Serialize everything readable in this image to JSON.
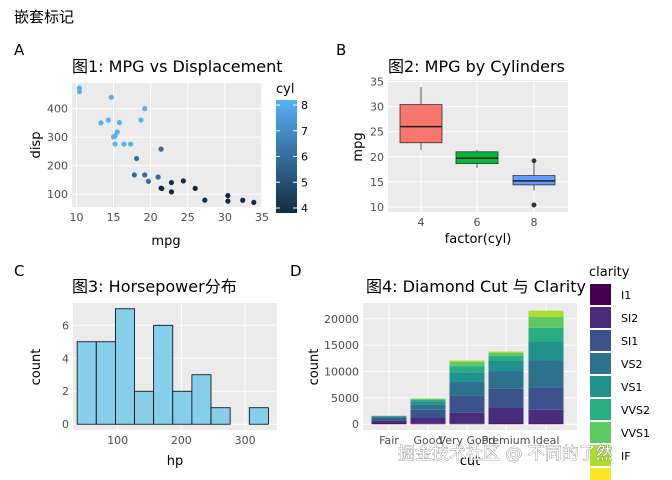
{
  "page_title": "嵌套标记",
  "watermark": "掘金技术社区 @ 不同的了然",
  "colors": {
    "panel_bg": "#ebebeb",
    "grid_major": "#ffffff",
    "hist_fill": "#87ceeb",
    "cyl4": "#f8766d",
    "cyl6": "#00ba38",
    "cyl8": "#619cff",
    "cyl_low": "#132b43",
    "cyl_high": "#56b1f7"
  },
  "chart_data": [
    {
      "tag": "A",
      "type": "scatter",
      "title": "图1: MPG vs Displacement",
      "xlabel": "mpg",
      "ylabel": "disp",
      "xlim": [
        9.4,
        35.0
      ],
      "ylim": [
        55,
        490
      ],
      "xticks": [
        10,
        15,
        20,
        25,
        30,
        35
      ],
      "yticks": [
        100,
        200,
        300,
        400
      ],
      "color_legend": {
        "title": "cyl",
        "range": [
          4,
          8
        ],
        "ticks": [
          4,
          5,
          6,
          7,
          8
        ]
      },
      "points": [
        {
          "x": 21.0,
          "y": 160,
          "c": 6
        },
        {
          "x": 21.0,
          "y": 160,
          "c": 6
        },
        {
          "x": 22.8,
          "y": 108,
          "c": 4
        },
        {
          "x": 21.4,
          "y": 258,
          "c": 6
        },
        {
          "x": 18.7,
          "y": 360,
          "c": 8
        },
        {
          "x": 18.1,
          "y": 225,
          "c": 6
        },
        {
          "x": 14.3,
          "y": 360,
          "c": 8
        },
        {
          "x": 24.4,
          "y": 146.7,
          "c": 4
        },
        {
          "x": 22.8,
          "y": 140.8,
          "c": 4
        },
        {
          "x": 19.2,
          "y": 167.6,
          "c": 6
        },
        {
          "x": 17.8,
          "y": 167.6,
          "c": 6
        },
        {
          "x": 16.4,
          "y": 275.8,
          "c": 8
        },
        {
          "x": 17.3,
          "y": 275.8,
          "c": 8
        },
        {
          "x": 15.2,
          "y": 275.8,
          "c": 8
        },
        {
          "x": 10.4,
          "y": 472,
          "c": 8
        },
        {
          "x": 10.4,
          "y": 460,
          "c": 8
        },
        {
          "x": 14.7,
          "y": 440,
          "c": 8
        },
        {
          "x": 32.4,
          "y": 78.7,
          "c": 4
        },
        {
          "x": 30.4,
          "y": 75.7,
          "c": 4
        },
        {
          "x": 33.9,
          "y": 71.1,
          "c": 4
        },
        {
          "x": 21.5,
          "y": 120.1,
          "c": 4
        },
        {
          "x": 15.5,
          "y": 318,
          "c": 8
        },
        {
          "x": 15.2,
          "y": 304,
          "c": 8
        },
        {
          "x": 13.3,
          "y": 350,
          "c": 8
        },
        {
          "x": 19.2,
          "y": 400,
          "c": 8
        },
        {
          "x": 27.3,
          "y": 79,
          "c": 4
        },
        {
          "x": 26.0,
          "y": 120.3,
          "c": 4
        },
        {
          "x": 30.4,
          "y": 95.1,
          "c": 4
        },
        {
          "x": 15.8,
          "y": 351,
          "c": 8
        },
        {
          "x": 19.7,
          "y": 145,
          "c": 6
        },
        {
          "x": 15.0,
          "y": 301,
          "c": 8
        },
        {
          "x": 21.4,
          "y": 121,
          "c": 4
        }
      ]
    },
    {
      "tag": "B",
      "type": "box",
      "title": "图2: MPG by Cylinders",
      "xlabel": "factor(cyl)",
      "ylabel": "mpg",
      "ylim": [
        9.0,
        35.3
      ],
      "yticks": [
        10,
        15,
        20,
        25,
        30,
        35
      ],
      "categories": [
        "4",
        "6",
        "8"
      ],
      "boxes": [
        {
          "cat": "4",
          "min": 21.4,
          "q1": 22.8,
          "median": 26.0,
          "q3": 30.4,
          "max": 33.9,
          "outliers": [],
          "color": "#f8766d"
        },
        {
          "cat": "6",
          "min": 17.8,
          "q1": 18.65,
          "median": 19.7,
          "q3": 21.0,
          "max": 21.4,
          "outliers": [],
          "color": "#00ba38"
        },
        {
          "cat": "8",
          "min": 13.3,
          "q1": 14.4,
          "median": 15.2,
          "q3": 16.25,
          "max": 18.7,
          "outliers": [
            10.4,
            10.4,
            19.2
          ],
          "color": "#619cff"
        }
      ]
    },
    {
      "tag": "C",
      "type": "histogram",
      "title": "图3: Horsepower分布",
      "xlabel": "hp",
      "ylabel": "count",
      "xlim": [
        30,
        350
      ],
      "ylim": [
        -0.35,
        7.35
      ],
      "xticks": [
        100,
        200,
        300
      ],
      "yticks": [
        0,
        2,
        4,
        6
      ],
      "bins": [
        {
          "x0": 36.5,
          "x1": 66.5,
          "count": 5
        },
        {
          "x0": 66.5,
          "x1": 96.5,
          "count": 5
        },
        {
          "x0": 96.5,
          "x1": 126.5,
          "count": 7
        },
        {
          "x0": 126.5,
          "x1": 156.5,
          "count": 2
        },
        {
          "x0": 156.5,
          "x1": 186.5,
          "count": 6
        },
        {
          "x0": 186.5,
          "x1": 216.5,
          "count": 2
        },
        {
          "x0": 216.5,
          "x1": 246.5,
          "count": 3
        },
        {
          "x0": 246.5,
          "x1": 276.5,
          "count": 1
        },
        {
          "x0": 276.5,
          "x1": 306.5,
          "count": 0
        },
        {
          "x0": 306.5,
          "x1": 336.5,
          "count": 1
        }
      ]
    },
    {
      "tag": "D",
      "type": "stacked-bar",
      "title": "图4: Diamond Cut 与 Clarity",
      "xlabel": "cut",
      "ylabel": "count",
      "ylim": [
        -1100,
        23000
      ],
      "yticks": [
        0,
        5000,
        10000,
        15000,
        20000
      ],
      "categories": [
        "Fair",
        "Good",
        "Very Good",
        "Premium",
        "Ideal"
      ],
      "legend_title": "clarity",
      "series": [
        {
          "name": "I1",
          "color": "#440154",
          "values": [
            210,
            96,
            84,
            205,
            146
          ]
        },
        {
          "name": "SI2",
          "color": "#472d7b",
          "values": [
            466,
            1081,
            2100,
            2949,
            2598
          ]
        },
        {
          "name": "SI1",
          "color": "#3b528b",
          "values": [
            408,
            1560,
            3240,
            3575,
            4282
          ]
        },
        {
          "name": "VS2",
          "color": "#2c728e",
          "values": [
            261,
            978,
            2591,
            3357,
            5071
          ]
        },
        {
          "name": "VS1",
          "color": "#21918c",
          "values": [
            170,
            648,
            1775,
            1989,
            3589
          ]
        },
        {
          "name": "VVS2",
          "color": "#28ae80",
          "values": [
            69,
            286,
            1235,
            870,
            2606
          ]
        },
        {
          "name": "VVS1",
          "color": "#5ec962",
          "values": [
            17,
            186,
            789,
            616,
            2047
          ]
        },
        {
          "name": "IF",
          "color": "#addc30",
          "values": [
            9,
            71,
            268,
            230,
            1212
          ]
        },
        {
          "name": "",
          "color": "#fde725",
          "values": [
            0,
            0,
            0,
            0,
            0
          ]
        }
      ]
    }
  ]
}
